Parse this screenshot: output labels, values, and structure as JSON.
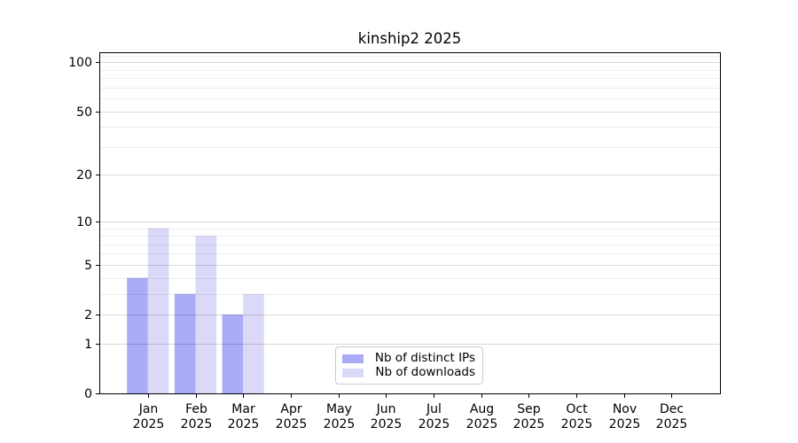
{
  "chart_data": {
    "type": "bar",
    "title": "kinship2 2025",
    "xlabel": "",
    "ylabel": "",
    "x_year": "2025",
    "categories": [
      "Jan",
      "Feb",
      "Mar",
      "Apr",
      "May",
      "Jun",
      "Jul",
      "Aug",
      "Sep",
      "Oct",
      "Nov",
      "Dec"
    ],
    "series": [
      {
        "name": "Nb of distinct IPs",
        "color": "#aaaaf7",
        "values": [
          4,
          3,
          2,
          0,
          0,
          0,
          0,
          0,
          0,
          0,
          0,
          0
        ]
      },
      {
        "name": "Nb of downloads",
        "color": "#dadaf8",
        "values": [
          9,
          8,
          3,
          0,
          0,
          0,
          0,
          0,
          0,
          0,
          0,
          0
        ]
      }
    ],
    "yscale": "log1p",
    "ylim": [
      0,
      115
    ],
    "yticks_major": [
      0,
      1,
      2,
      5,
      10,
      20,
      50,
      100
    ],
    "yticks_minor": [
      3,
      4,
      6,
      7,
      8,
      9,
      30,
      40,
      60,
      70,
      80,
      90,
      110
    ],
    "grid": "horizontal",
    "legend_position": "lower center"
  },
  "colors": {
    "background": "#ffffff",
    "axis": "#000000",
    "text": "#000000",
    "grid_major": "rgba(0,0,0,0.15)",
    "grid_minor": "rgba(0,0,0,0.072)",
    "legend_border": "#cccccc"
  }
}
